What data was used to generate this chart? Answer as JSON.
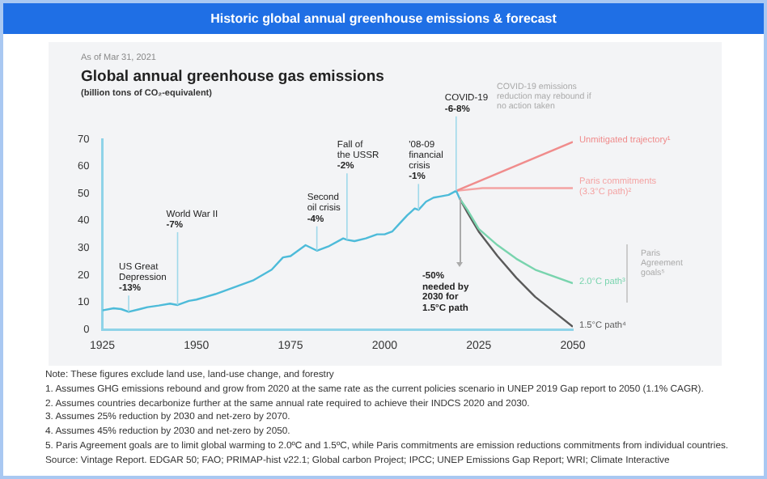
{
  "chart_data": {
    "type": "line",
    "title": "Historic global annual greenhouse emissions & forecast",
    "subtitle": "Global annual greenhouse gas emissions",
    "ylabel": "(billion tons of CO₂-equivalent)",
    "xlim": [
      1925,
      2050
    ],
    "xticks": [
      1925,
      1950,
      1975,
      2000,
      2025,
      2050
    ],
    "ylim": [
      0,
      70
    ],
    "yticks": [
      0,
      10,
      20,
      30,
      40,
      50,
      60,
      70
    ],
    "grid": false,
    "legend": false,
    "marker": "none",
    "line_style": "solid",
    "series": [
      {
        "color": "#4dbbd9",
        "x": [
          1925,
          1928,
          1930,
          1932,
          1935,
          1937,
          1940,
          1943,
          1945,
          1948,
          1950,
          1955,
          1960,
          1965,
          1970,
          1973,
          1975,
          1979,
          1982,
          1985,
          1989,
          1990,
          1992,
          1995,
          1998,
          2000,
          2002,
          2004,
          2006,
          2008,
          2009,
          2011,
          2013,
          2015,
          2017,
          2019,
          2020
        ],
        "values": [
          7,
          7.8,
          7.5,
          6.5,
          7.5,
          8.2,
          8.8,
          9.5,
          9,
          10.5,
          11,
          13,
          15.5,
          18,
          22,
          26.5,
          27,
          31,
          29,
          30.5,
          33.5,
          33,
          32.5,
          33.5,
          35,
          35,
          36,
          39,
          42,
          44.5,
          44,
          47,
          48.5,
          49,
          49.5,
          51,
          48
        ]
      },
      {
        "name": "Unmitigated trajectory¹",
        "color": "#f08c8c",
        "x": [
          2019,
          2050
        ],
        "values": [
          51,
          69
        ]
      },
      {
        "name": "Paris commitments\n(3.3°C path)²",
        "color": "#f4a3a3",
        "x": [
          2019,
          2026,
          2050
        ],
        "values": [
          51,
          52,
          52
        ]
      },
      {
        "name": "2.0°C path³",
        "color": "#79d4ae",
        "x": [
          2020,
          2022,
          2025,
          2030,
          2035,
          2040,
          2050
        ],
        "values": [
          48,
          44,
          37,
          31,
          26,
          22,
          17
        ]
      },
      {
        "name": "1.5°C path⁴",
        "color": "#5a5a5a",
        "x": [
          2020,
          2022,
          2025,
          2030,
          2035,
          2040,
          2050
        ],
        "values": [
          48,
          43,
          36,
          27,
          19,
          12,
          1
        ]
      }
    ],
    "annotations": [
      {
        "text": "US Great\nDepression\n-13%",
        "x": 1932,
        "y": 6.5
      },
      {
        "text": "World War II\n-7%",
        "x": 1945,
        "y": 9
      },
      {
        "text": "Second\noil crisis\n-4%",
        "x": 1982,
        "y": 29
      },
      {
        "text": "Fall of\nthe USSR\n-2%",
        "x": 1990,
        "y": 33
      },
      {
        "text": "'08-09\nfinancial\ncrisis\n-1%",
        "x": 2009,
        "y": 44
      },
      {
        "text": "COVID-19\n-6-8%",
        "x": 2019,
        "y": 51
      },
      "As of Mar 31, 2021",
      "COVID-19 emissions\nreduction may rebound if\nno action taken",
      "Paris\nAgreement\ngoals⁵",
      "-50%\nneeded by\n2030 for\n1.5°C path",
      "Note: These figures exclude land use, land-use change, and forestry",
      "1. Assumes GHG emissions rebound and grow from 2020 at the same rate as the current policies scenario in UNEP 2019 Gap report to 2050 (1.1% CAGR).",
      "2. Assumes countries decarbonize further at the same annual rate required to achieve their INDCS 2020 and 2030.",
      "3. Assumes 25% reduction by 2030 and net-zero by 2070.",
      "4. Assumes 45% reduction by 2030 and net-zero by 2050.",
      "5. Paris Agreement goals are to limit global warming to 2.0ºC and 1.5ºC, while Paris commitments are emission reductions commitments from individual countries.",
      "Source: Vintage Report. EDGAR 50; FAO; PRIMAP-hist v22.1; Global carbon Project; IPCC; UNEP Emissions Gap Report; WRI; Climate Interactive"
    ]
  }
}
